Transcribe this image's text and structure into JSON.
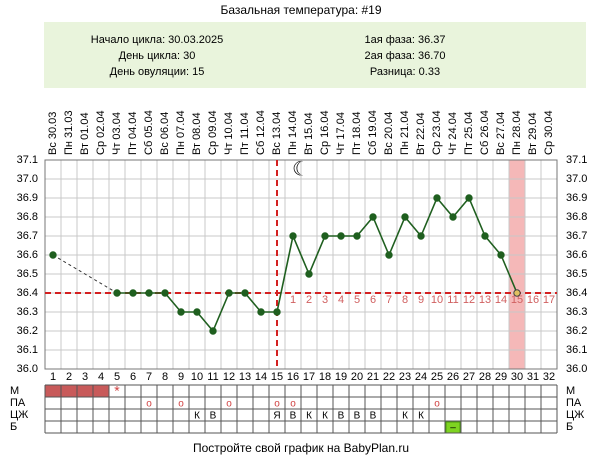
{
  "chart_data": {
    "type": "line",
    "title": "Базальная температура: #19",
    "info_left": [
      "Начало цикла: 30.03.2025",
      "День цикла: 30",
      "День овуляции: 15"
    ],
    "info_right": [
      "1ая фаза: 36.37",
      "2ая фаза: 36.70",
      "Разница: 0.33"
    ],
    "x": [
      1,
      2,
      3,
      4,
      5,
      6,
      7,
      8,
      9,
      10,
      11,
      12,
      13,
      14,
      15,
      16,
      17,
      18,
      19,
      20,
      21,
      22,
      23,
      24,
      25,
      26,
      27,
      28,
      29,
      30,
      31,
      32
    ],
    "x_labels": [
      "Вс 30.03",
      "Пн 31.03",
      "Вт 01.04",
      "Ср 02.04",
      "Чт 03.04",
      "Пт 04.04",
      "Сб 05.04",
      "Вс 06.04",
      "Пн 07.04",
      "Вт 08.04",
      "Ср 09.04",
      "Чт 10.04",
      "Пт 11.04",
      "Сб 12.04",
      "Вс 13.04",
      "Пн 14.04",
      "Вт 15.04",
      "Ср 16.04",
      "Чт 17.04",
      "Пт 18.04",
      "Сб 19.04",
      "Вс 20.04",
      "Пн 21.04",
      "Вт 22.04",
      "Ср 23.04",
      "Чт 24.04",
      "Пт 25.04",
      "Сб 26.04",
      "Вс 27.04",
      "Пн 28.04",
      "Вт 29.04",
      "Ср 30.04"
    ],
    "series": [
      {
        "color": "#1f5f1f",
        "values": [
          36.6,
          null,
          null,
          null,
          36.4,
          36.4,
          36.4,
          36.4,
          36.3,
          36.3,
          36.2,
          36.4,
          36.4,
          36.3,
          36.3,
          36.7,
          36.5,
          36.7,
          36.7,
          36.7,
          36.8,
          36.6,
          36.8,
          36.7,
          36.9,
          36.8,
          36.9,
          36.7,
          36.6,
          36.4,
          null,
          null
        ]
      }
    ],
    "xlim": [
      0.5,
      32.5
    ],
    "ylim": [
      36.0,
      37.1
    ],
    "yticks": [
      {
        "value": 36.0,
        "label": "36.0"
      },
      36.1,
      36.2,
      36.3,
      36.4,
      36.5,
      36.6,
      36.7,
      36.8,
      36.9,
      {
        "value": 37.0,
        "label": "37.0"
      },
      37.1
    ],
    "grid": true,
    "coverline": 36.4,
    "coverline_color": "#d42020",
    "ovulation_day": 15,
    "today": 30,
    "luteal_day_labels": [
      1,
      2,
      3,
      4,
      5,
      6,
      7,
      8,
      9,
      10,
      11,
      12,
      13,
      14,
      15,
      16,
      17
    ],
    "rows": [
      {
        "label": "М",
        "filled_days": [
          1,
          2,
          3,
          4
        ],
        "marks": [
          {
            "day": 5,
            "text": "*"
          }
        ]
      },
      {
        "label": "ПА",
        "marks": [
          {
            "day": 7,
            "text": "о"
          },
          {
            "day": 9,
            "text": "о"
          },
          {
            "day": 12,
            "text": "о"
          },
          {
            "day": 15,
            "text": "о"
          },
          {
            "day": 16,
            "text": "о"
          },
          {
            "day": 25,
            "text": "о"
          }
        ]
      },
      {
        "label": "ЦЖ",
        "marks": [
          {
            "day": 10,
            "text": "К"
          },
          {
            "day": 11,
            "text": "В"
          },
          {
            "day": 15,
            "text": "Я"
          },
          {
            "day": 16,
            "text": "В"
          },
          {
            "day": 17,
            "text": "К"
          },
          {
            "day": 18,
            "text": "К"
          },
          {
            "day": 19,
            "text": "В"
          },
          {
            "day": 20,
            "text": "В"
          },
          {
            "day": 21,
            "text": "В"
          },
          {
            "day": 23,
            "text": "К"
          },
          {
            "day": 24,
            "text": "К"
          }
        ]
      },
      {
        "label": "Б",
        "green_marks": [
          {
            "day": 26,
            "text": "–"
          }
        ]
      }
    ],
    "footer": "Постройте свой график на BabyPlan.ru"
  }
}
